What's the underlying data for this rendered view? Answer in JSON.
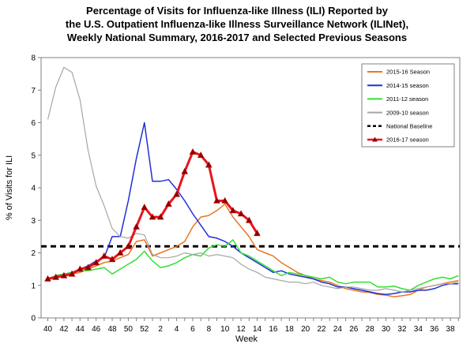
{
  "chart_data": {
    "type": "line",
    "title": [
      "Percentage of Visits for Influenza-like Illness (ILI) Reported by",
      "the U.S. Outpatient Influenza-like Illness Surveillance Network (ILINet),",
      "Weekly National Summary, 2016-2017 and Selected Previous Seasons"
    ],
    "xlabel": "Week",
    "ylabel": "% of Visits for ILI",
    "ylim": [
      0,
      8
    ],
    "yticks": [
      "0",
      "1",
      "2",
      "3",
      "4",
      "5",
      "6",
      "7",
      "8"
    ],
    "xtick_labels": [
      "40",
      "42",
      "44",
      "46",
      "48",
      "50",
      "52",
      "2",
      "4",
      "6",
      "8",
      "10",
      "12",
      "14",
      "16",
      "18",
      "20",
      "22",
      "24",
      "26",
      "28",
      "30",
      "32",
      "34",
      "36",
      "38"
    ],
    "weeks": [
      40,
      41,
      42,
      43,
      44,
      45,
      46,
      47,
      48,
      49,
      50,
      51,
      52,
      1,
      2,
      3,
      4,
      5,
      6,
      7,
      8,
      9,
      10,
      11,
      12,
      13,
      14,
      15,
      16,
      17,
      18,
      19,
      20,
      21,
      22,
      23,
      24,
      25,
      26,
      27,
      28,
      29,
      30,
      31,
      32,
      33,
      34,
      35,
      36,
      37,
      38,
      39
    ],
    "grid": false,
    "legend_position": "top-right",
    "baseline": {
      "name": "National Baseline",
      "value": 2.2,
      "color": "#000000"
    },
    "series": [
      {
        "name": "2015-16 Season",
        "color": "#E87722",
        "width": 1.5,
        "markers": false,
        "values": [
          1.2,
          1.25,
          1.3,
          1.35,
          1.4,
          1.5,
          1.6,
          1.7,
          1.75,
          1.85,
          1.95,
          2.35,
          2.4,
          1.9,
          2.0,
          2.1,
          2.2,
          2.35,
          2.8,
          3.1,
          3.15,
          3.3,
          3.5,
          3.1,
          2.8,
          2.5,
          2.1,
          2.0,
          1.9,
          1.7,
          1.55,
          1.4,
          1.3,
          1.2,
          1.15,
          1.1,
          1.0,
          0.9,
          0.85,
          0.8,
          0.78,
          0.72,
          0.7,
          0.65,
          0.68,
          0.72,
          0.85,
          0.95,
          1.0,
          1.05,
          1.1,
          1.15
        ]
      },
      {
        "name": "2014-15 season",
        "color": "#1F2FD8",
        "width": 1.5,
        "markers": false,
        "values": [
          1.2,
          1.3,
          1.35,
          1.4,
          1.5,
          1.6,
          1.75,
          1.85,
          2.5,
          2.5,
          3.6,
          4.9,
          6.0,
          4.2,
          4.2,
          4.25,
          3.95,
          3.6,
          3.2,
          2.85,
          2.5,
          2.45,
          2.35,
          2.2,
          2.0,
          1.85,
          1.7,
          1.55,
          1.4,
          1.45,
          1.35,
          1.3,
          1.25,
          1.2,
          1.1,
          1.05,
          0.95,
          0.95,
          0.9,
          0.85,
          0.8,
          0.75,
          0.72,
          0.75,
          0.8,
          0.8,
          0.85,
          0.85,
          0.9,
          1.0,
          1.05,
          1.05
        ]
      },
      {
        "name": "2011-12 season",
        "color": "#33E033",
        "width": 1.5,
        "markers": false,
        "values": [
          1.2,
          1.3,
          1.35,
          1.4,
          1.45,
          1.45,
          1.5,
          1.55,
          1.35,
          1.5,
          1.65,
          1.8,
          2.05,
          1.75,
          1.55,
          1.6,
          1.7,
          1.85,
          1.95,
          1.9,
          2.15,
          2.25,
          2.2,
          2.4,
          2.0,
          1.9,
          1.75,
          1.6,
          1.45,
          1.3,
          1.4,
          1.35,
          1.3,
          1.25,
          1.2,
          1.25,
          1.1,
          1.05,
          1.1,
          1.1,
          1.1,
          0.95,
          0.95,
          0.98,
          0.9,
          0.85,
          1.0,
          1.1,
          1.2,
          1.25,
          1.2,
          1.3
        ]
      },
      {
        "name": "2009-10 season",
        "color": "#A6A6A6",
        "width": 1.2,
        "markers": false,
        "values": [
          6.1,
          7.1,
          7.7,
          7.55,
          6.7,
          5.15,
          4.05,
          3.45,
          2.75,
          2.5,
          2.45,
          2.6,
          2.55,
          1.95,
          1.85,
          1.85,
          1.9,
          2.0,
          1.95,
          2.0,
          1.9,
          1.95,
          1.9,
          1.85,
          1.65,
          1.5,
          1.4,
          1.25,
          1.2,
          1.15,
          1.1,
          1.1,
          1.05,
          1.1,
          1.0,
          0.95,
          0.9,
          0.95,
          0.95,
          0.9,
          0.85,
          0.85,
          0.9,
          0.85,
          0.8,
          0.85,
          0.9,
          0.95,
          1.0,
          1.05,
          1.05,
          1.1
        ]
      },
      {
        "name": "2016-17 season",
        "color": "#E8141C",
        "width": 3,
        "markers": true,
        "values": [
          1.2,
          1.25,
          1.3,
          1.35,
          1.5,
          1.55,
          1.7,
          1.9,
          1.8,
          2.0,
          2.2,
          2.8,
          3.4,
          3.1,
          3.1,
          3.5,
          3.8,
          4.5,
          5.1,
          5.0,
          4.7,
          3.6,
          3.6,
          3.3,
          3.2,
          3.0,
          2.6
        ]
      }
    ]
  }
}
